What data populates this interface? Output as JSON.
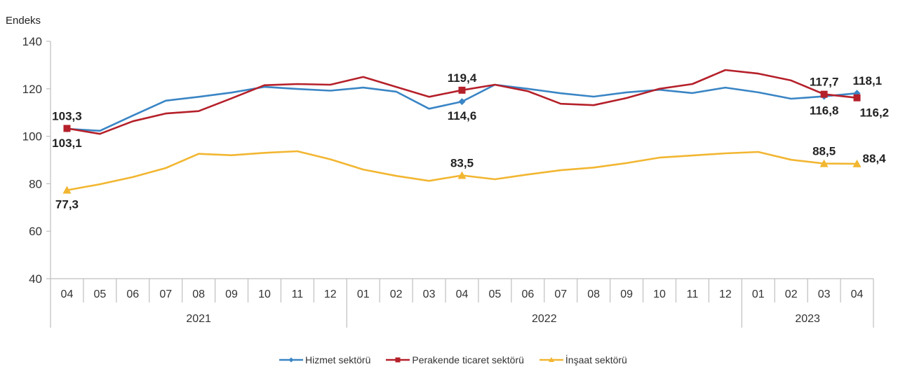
{
  "chart_data": {
    "type": "line",
    "ylabel": "Endeks",
    "ylim": [
      40,
      140
    ],
    "yticks": [
      "40",
      "60",
      "80",
      "100",
      "120",
      "140"
    ],
    "ytick_values": [
      40,
      60,
      80,
      100,
      120,
      140
    ],
    "categories": [
      "04",
      "05",
      "06",
      "07",
      "08",
      "09",
      "10",
      "11",
      "12",
      "01",
      "02",
      "03",
      "04",
      "05",
      "06",
      "07",
      "08",
      "09",
      "10",
      "11",
      "12",
      "01",
      "02",
      "03",
      "04"
    ],
    "years": [
      {
        "label": "2021",
        "count": 9
      },
      {
        "label": "2022",
        "count": 12
      },
      {
        "label": "2023",
        "count": 4
      }
    ],
    "series": [
      {
        "name": "Hizmet sektörü",
        "color": "#3A85C5",
        "marker": "diamond",
        "values": [
          103.1,
          102.3,
          108.7,
          115.0,
          116.6,
          118.4,
          120.8,
          119.9,
          119.2,
          120.5,
          118.8,
          111.6,
          114.6,
          121.7,
          120.0,
          118.1,
          116.7,
          118.5,
          119.6,
          118.2,
          120.5,
          118.5,
          115.8,
          116.8,
          118.1
        ],
        "labels": [
          {
            "index": 0,
            "text": "103,1",
            "pos": "below"
          },
          {
            "index": 12,
            "text": "114,6",
            "pos": "below"
          },
          {
            "index": 23,
            "text": "116,8",
            "pos": "below"
          },
          {
            "index": 24,
            "text": "118,1",
            "pos": "above-right"
          }
        ]
      },
      {
        "name": "Perakende ticaret sektörü",
        "color": "#B5202A",
        "marker": "square",
        "values": [
          103.3,
          101.0,
          106.3,
          109.6,
          110.6,
          116.0,
          121.5,
          122.0,
          121.7,
          125.0,
          120.8,
          116.6,
          119.4,
          121.7,
          119.0,
          113.7,
          113.1,
          116.1,
          120.0,
          122.0,
          127.9,
          126.4,
          123.5,
          117.7,
          116.2
        ],
        "labels": [
          {
            "index": 0,
            "text": "103,3",
            "pos": "above"
          },
          {
            "index": 12,
            "text": "119,4",
            "pos": "above"
          },
          {
            "index": 23,
            "text": "117,7",
            "pos": "above"
          },
          {
            "index": 24,
            "text": "116,2",
            "pos": "below-right"
          }
        ]
      },
      {
        "name": "İnşaat sektörü",
        "color": "#F2B631",
        "marker": "triangle",
        "values": [
          77.3,
          79.8,
          82.8,
          86.6,
          92.6,
          92.0,
          93.0,
          93.7,
          90.3,
          86.0,
          83.3,
          81.2,
          83.5,
          81.9,
          83.9,
          85.7,
          86.8,
          88.7,
          91.0,
          91.9,
          92.8,
          93.4,
          90.1,
          88.5,
          88.4
        ],
        "labels": [
          {
            "index": 0,
            "text": "77,3",
            "pos": "below"
          },
          {
            "index": 12,
            "text": "83,5",
            "pos": "above"
          },
          {
            "index": 23,
            "text": "88,5",
            "pos": "above"
          },
          {
            "index": 24,
            "text": "88,4",
            "pos": "right"
          }
        ]
      }
    ],
    "legend_position": "bottom",
    "grid": false
  }
}
